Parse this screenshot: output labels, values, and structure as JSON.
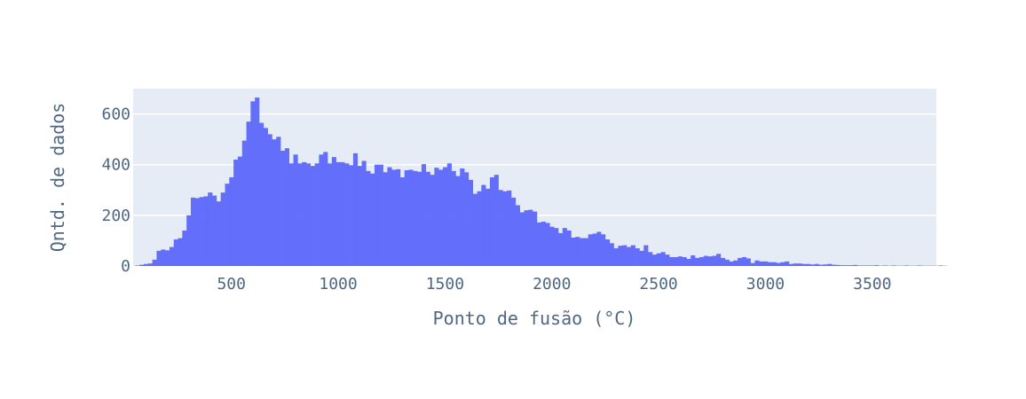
{
  "chart_data": {
    "type": "histogram",
    "xlabel": "Ponto de fusão (°C)",
    "ylabel": "Qntd. de dados",
    "xlim": [
      40,
      3800
    ],
    "ylim": [
      0,
      700
    ],
    "xticks": [
      500,
      1000,
      1500,
      2000,
      2500,
      3000,
      3500
    ],
    "yticks": [
      0,
      200,
      400,
      600
    ],
    "grid": true,
    "bar_color": "#636efa",
    "plot_background": "#e5ecf6",
    "bin_start": 50,
    "bin_width": 20,
    "values": [
      2,
      5,
      8,
      10,
      25,
      60,
      65,
      62,
      75,
      105,
      110,
      140,
      200,
      270,
      268,
      272,
      275,
      290,
      278,
      255,
      290,
      325,
      350,
      420,
      432,
      495,
      570,
      650,
      665,
      565,
      545,
      520,
      500,
      510,
      455,
      465,
      405,
      440,
      405,
      410,
      405,
      395,
      405,
      440,
      450,
      405,
      430,
      410,
      410,
      405,
      398,
      445,
      395,
      415,
      375,
      365,
      400,
      400,
      370,
      390,
      380,
      382,
      350,
      378,
      380,
      375,
      372,
      402,
      372,
      360,
      388,
      380,
      390,
      405,
      375,
      355,
      385,
      370,
      340,
      285,
      295,
      320,
      305,
      350,
      360,
      300,
      295,
      298,
      270,
      240,
      212,
      220,
      222,
      215,
      172,
      175,
      170,
      155,
      150,
      130,
      150,
      140,
      112,
      115,
      110,
      110,
      125,
      128,
      135,
      125,
      105,
      90,
      70,
      80,
      82,
      75,
      82,
      70,
      60,
      82,
      55,
      45,
      50,
      55,
      45,
      35,
      35,
      38,
      35,
      28,
      42,
      32,
      35,
      40,
      38,
      40,
      48,
      32,
      25,
      18,
      22,
      32,
      35,
      30,
      12,
      22,
      18,
      18,
      15,
      15,
      12,
      15,
      18,
      8,
      10,
      10,
      8,
      8,
      6,
      8,
      5,
      6,
      8,
      5,
      4,
      3,
      3,
      3,
      4,
      2,
      2,
      2,
      2,
      3,
      1,
      2,
      1,
      2,
      1,
      1,
      2,
      1,
      1,
      2,
      1,
      1,
      1,
      1,
      2,
      1
    ]
  }
}
